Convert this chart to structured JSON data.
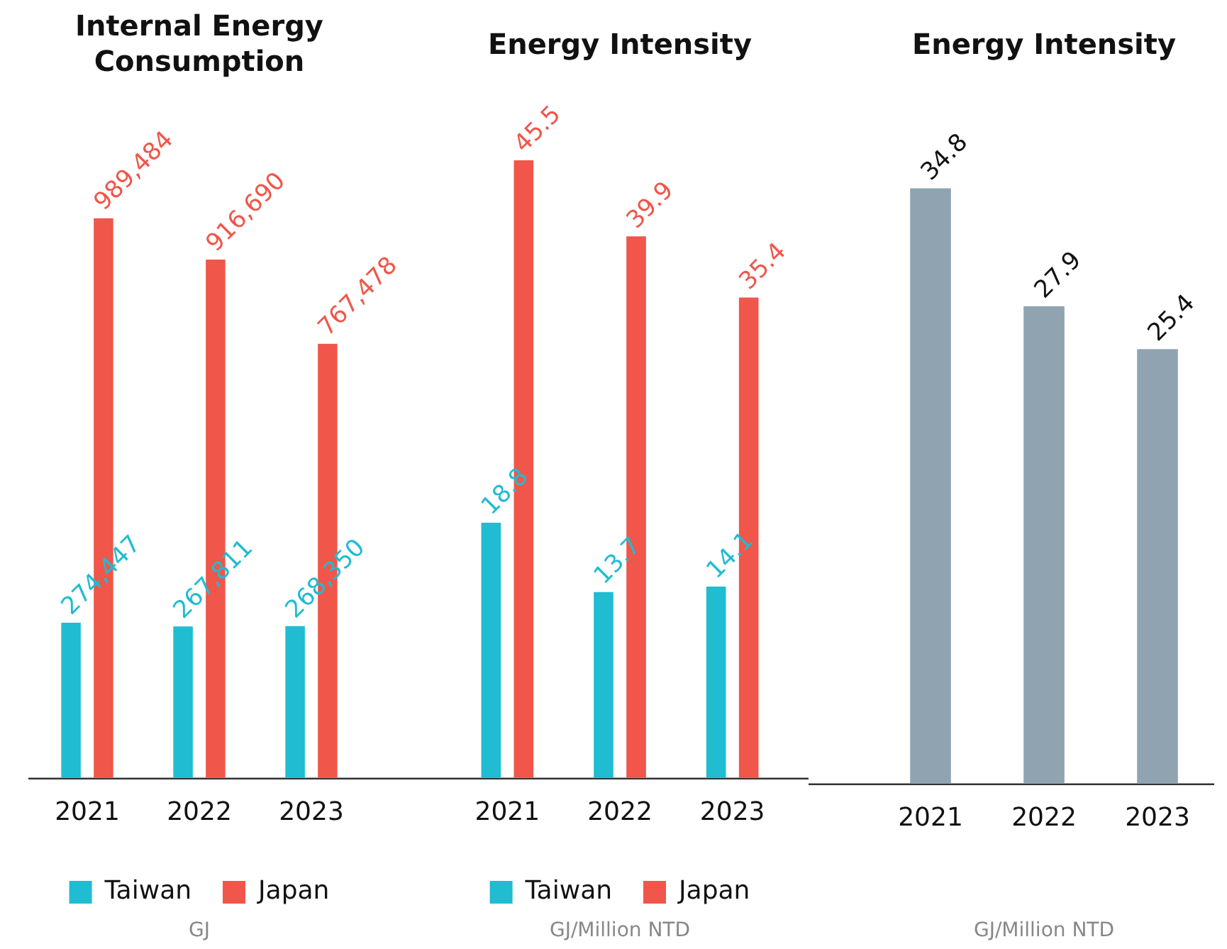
{
  "chart_data": [
    {
      "type": "bar",
      "title": "Internal Energy Consumption",
      "categories": [
        "2021",
        "2022",
        "2023"
      ],
      "series": [
        {
          "name": "Taiwan",
          "color": "#1fbcd2",
          "values": [
            274447,
            267811,
            268350
          ],
          "value_labels": [
            "274,447",
            "267,811",
            "268,350"
          ]
        },
        {
          "name": "Japan",
          "color": "#f0564a",
          "values": [
            989484,
            916690,
            767478
          ],
          "value_labels": [
            "989,484",
            "916,690",
            "767,478"
          ]
        }
      ],
      "legend": "bottom",
      "tick_labels": "x",
      "annotations": [
        "GJ"
      ]
    },
    {
      "type": "bar",
      "title": "Energy Intensity",
      "categories": [
        "2021",
        "2022",
        "2023"
      ],
      "series": [
        {
          "name": "Taiwan",
          "color": "#1fbcd2",
          "values": [
            18.8,
            13.7,
            14.1
          ]
        },
        {
          "name": "Japan",
          "color": "#f0564a",
          "values": [
            45.5,
            39.9,
            35.4
          ]
        }
      ],
      "data_labels": true,
      "legend": "bottom",
      "tick_labels": "x",
      "annotations": [
        "GJ/Million NTD"
      ]
    },
    {
      "type": "bar",
      "title": "Energy Intensity",
      "categories": [
        "2021",
        "2022",
        "2023"
      ],
      "series": [
        {
          "color": "#8fa3b1",
          "values": [
            34.8,
            27.9,
            25.4
          ]
        }
      ],
      "data_labels": true,
      "tick_labels": "x",
      "annotations": [
        "GJ/Million NTD"
      ]
    }
  ]
}
